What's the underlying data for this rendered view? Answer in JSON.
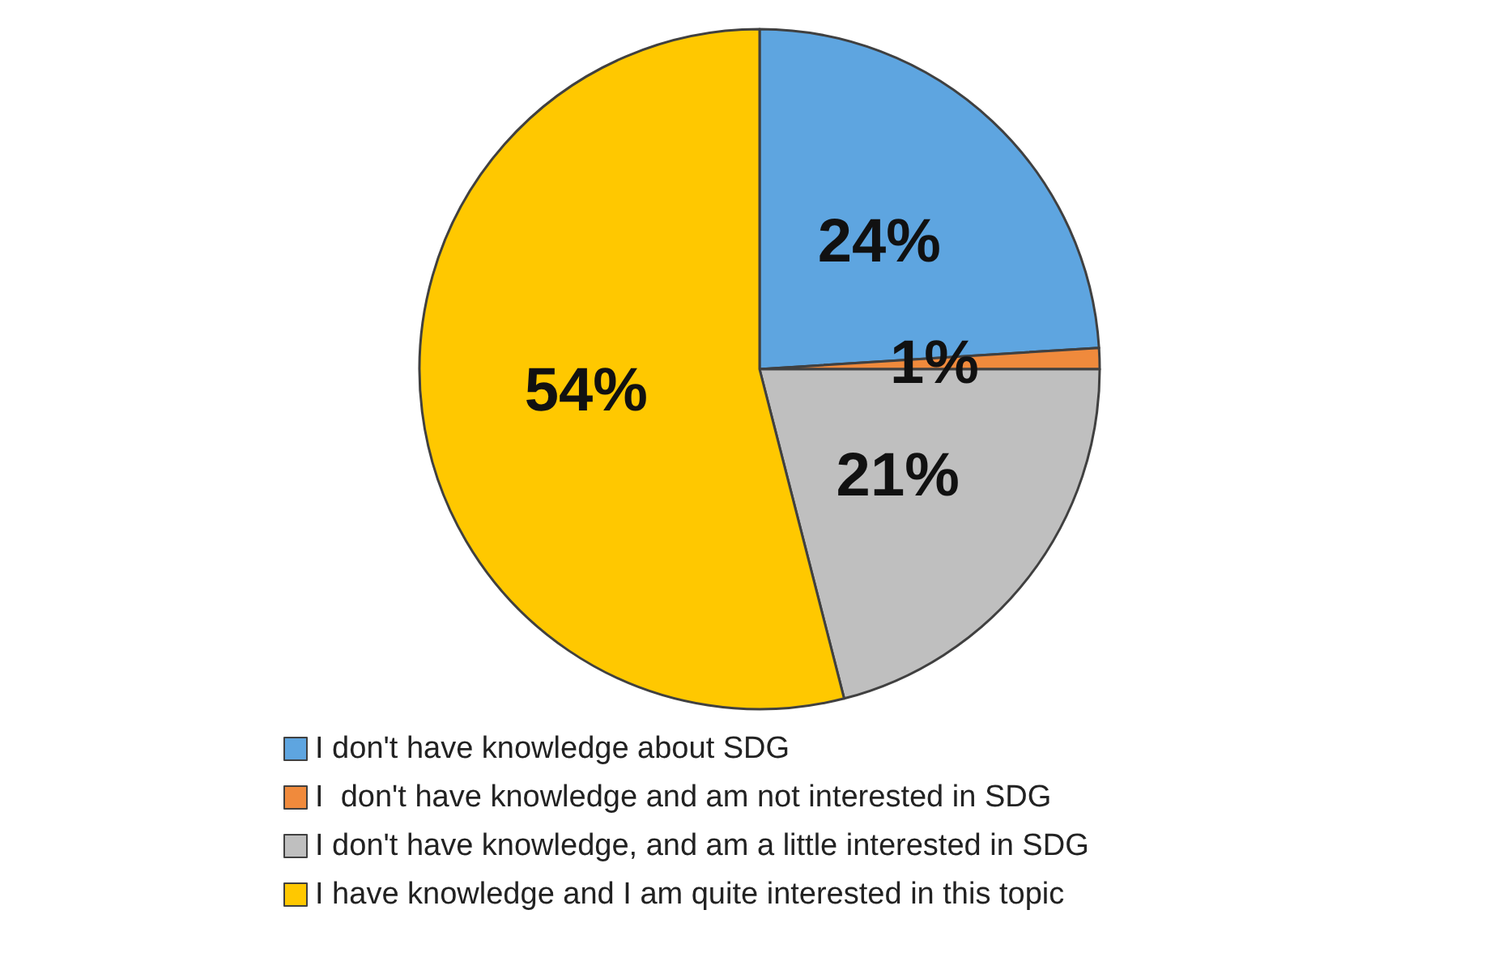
{
  "chart_data": {
    "type": "pie",
    "categories": [
      "I don't have knowledge about SDG",
      "I  don't have knowledge and am not interested in SDG",
      "I don't have knowledge, and am a little interested in SDG",
      "I have knowledge and I am quite interested in this topic"
    ],
    "values": [
      24,
      1,
      21,
      54
    ],
    "colors": [
      "#5ea5e0",
      "#f08a3c",
      "#bfbfbf",
      "#ffc800"
    ],
    "value_labels": [
      "24%",
      "1%",
      "21%",
      "54%"
    ],
    "legend": "bottom"
  }
}
